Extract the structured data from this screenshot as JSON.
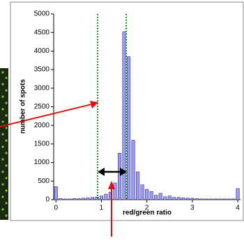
{
  "chart_data": {
    "type": "bar",
    "x": [
      0,
      0.1,
      0.2,
      0.3,
      0.4,
      0.5,
      0.6,
      0.7,
      0.8,
      0.9,
      1,
      1.1,
      1.2,
      1.3,
      1.4,
      1.5,
      1.6,
      1.7,
      1.8,
      1.9,
      2,
      2.1,
      2.2,
      2.3,
      2.4,
      2.5,
      2.6,
      2.7,
      2.8,
      2.9,
      3,
      3.1,
      3.2,
      3.3,
      3.4,
      3.5,
      3.6,
      3.7,
      3.8,
      3.9,
      4
    ],
    "values": [
      350,
      30,
      20,
      20,
      30,
      30,
      40,
      50,
      60,
      70,
      100,
      150,
      200,
      450,
      1250,
      4520,
      3850,
      1600,
      750,
      400,
      280,
      220,
      120,
      170,
      80,
      100,
      60,
      60,
      50,
      40,
      40,
      30,
      20,
      20,
      20,
      20,
      20,
      20,
      20,
      20,
      300
    ],
    "color": "#9999ff",
    "xlabel": "red/green ratio",
    "ylabel": "number of spots",
    "xlim": [
      -0.05,
      4.06
    ],
    "xticks": [
      0,
      1,
      2,
      3,
      4
    ],
    "ylim": [
      0,
      5000
    ],
    "yticks": [
      0,
      500,
      1000,
      1500,
      2000,
      2500,
      3000,
      3500,
      4000,
      4500,
      5000
    ],
    "grid": false
  }
}
